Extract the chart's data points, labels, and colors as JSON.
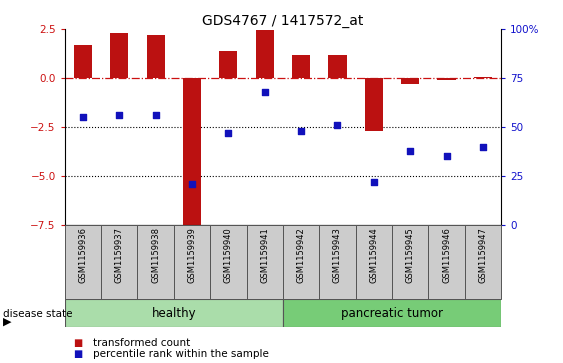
{
  "title": "GDS4767 / 1417572_at",
  "samples": [
    "GSM1159936",
    "GSM1159937",
    "GSM1159938",
    "GSM1159939",
    "GSM1159940",
    "GSM1159941",
    "GSM1159942",
    "GSM1159943",
    "GSM1159944",
    "GSM1159945",
    "GSM1159946",
    "GSM1159947"
  ],
  "transformed_count": [
    1.7,
    2.3,
    2.2,
    -7.5,
    1.4,
    2.45,
    1.2,
    1.2,
    -2.7,
    -0.3,
    -0.1,
    0.05
  ],
  "percentile_left": [
    -2.0,
    -1.9,
    -1.9,
    -5.4,
    -2.8,
    -0.7,
    -2.7,
    -2.4,
    -5.3,
    -3.7,
    -4.0,
    -3.5
  ],
  "ylim_left": [
    -7.5,
    2.5
  ],
  "ylim_right": [
    0,
    100
  ],
  "yticks_left": [
    2.5,
    0.0,
    -2.5,
    -5.0,
    -7.5
  ],
  "yticks_right": [
    100,
    75,
    50,
    25,
    0
  ],
  "ytick_right_labels": [
    "100%",
    "75",
    "50",
    "25",
    "0"
  ],
  "healthy_count": 6,
  "tumor_count": 6,
  "bar_color": "#bb1111",
  "scatter_color": "#1111bb",
  "ref_line_color": "#cc1111",
  "dotted_line_color": "#000000",
  "healthy_color": "#aaddaa",
  "tumor_color": "#77cc77",
  "legend_bar": "transformed count",
  "legend_scatter": "percentile rank within the sample",
  "tick_label_color_left": "#cc1111",
  "tick_label_color_right": "#1111cc",
  "bar_width": 0.5,
  "label_bg_color": "#cccccc",
  "fig_bg_color": "#ffffff"
}
